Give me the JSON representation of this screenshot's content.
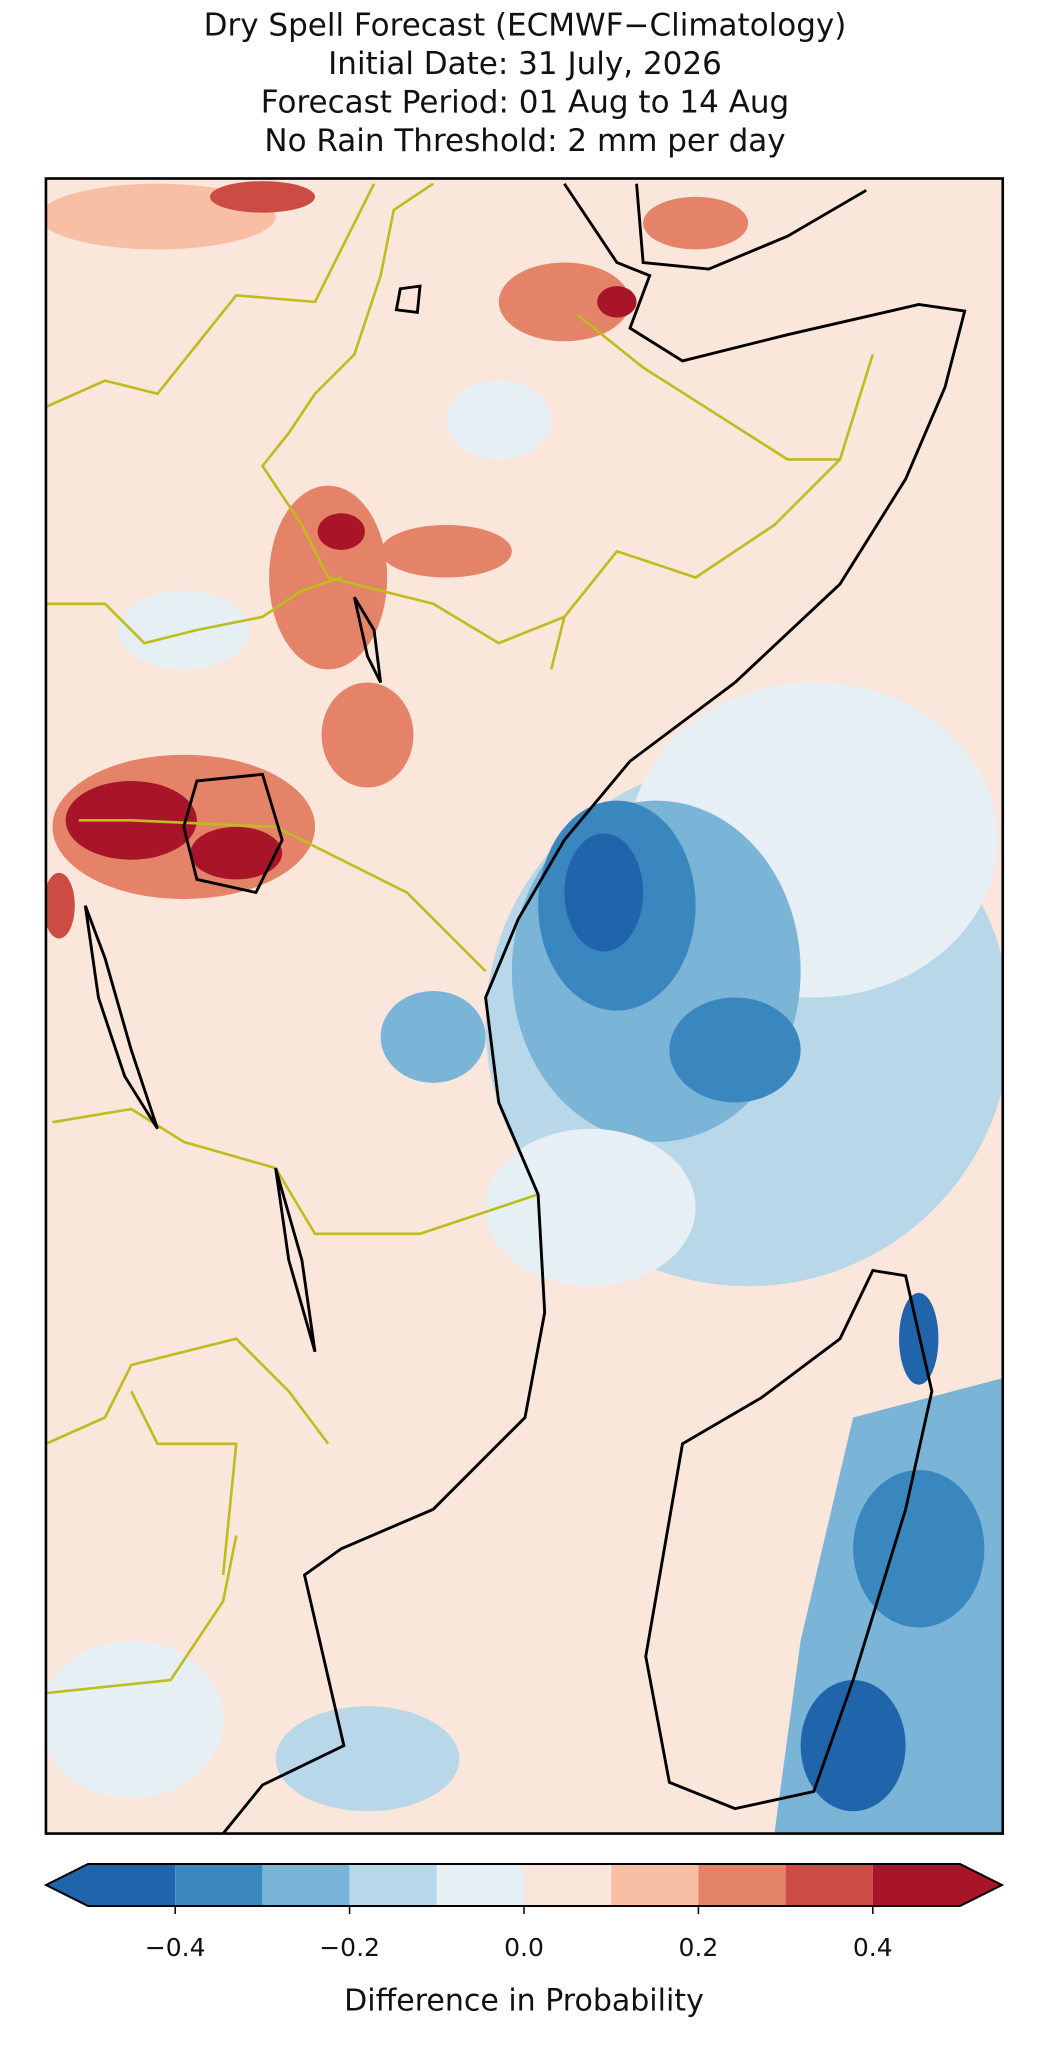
{
  "chart_data": {
    "type": "colorbar",
    "title": [
      "Dry Spell Forecast (ECMWF−Climatology)",
      "Initial Date: 31 July, 2026",
      "Forecast Period: 01 Aug to 14 Aug",
      "No Rain Threshold: 2 mm per day"
    ],
    "xlabel": "Difference in Probability",
    "levels": [
      -0.5,
      -0.4,
      -0.3,
      -0.2,
      -0.1,
      0,
      0.1,
      0.2,
      0.3,
      0.4,
      0.5
    ],
    "colors": [
      "#2065ab",
      "#3a87bf",
      "#7ab4d6",
      "#b8d7e9",
      "#e6eff4",
      "#fbe6dc",
      "#f8bfa4",
      "#e58368",
      "#cc4c43",
      "#a81529"
    ],
    "extend": "both",
    "xlim": [
      -0.5,
      0.5
    ],
    "xticks": [
      {
        "value": -0.4,
        "label": "−0.4"
      },
      {
        "value": -0.2,
        "label": "−0.2"
      },
      {
        "value": 0,
        "label": "0.0"
      },
      {
        "value": 0.2,
        "label": "0.2"
      },
      {
        "value": 0.4,
        "label": "0.4"
      }
    ]
  }
}
